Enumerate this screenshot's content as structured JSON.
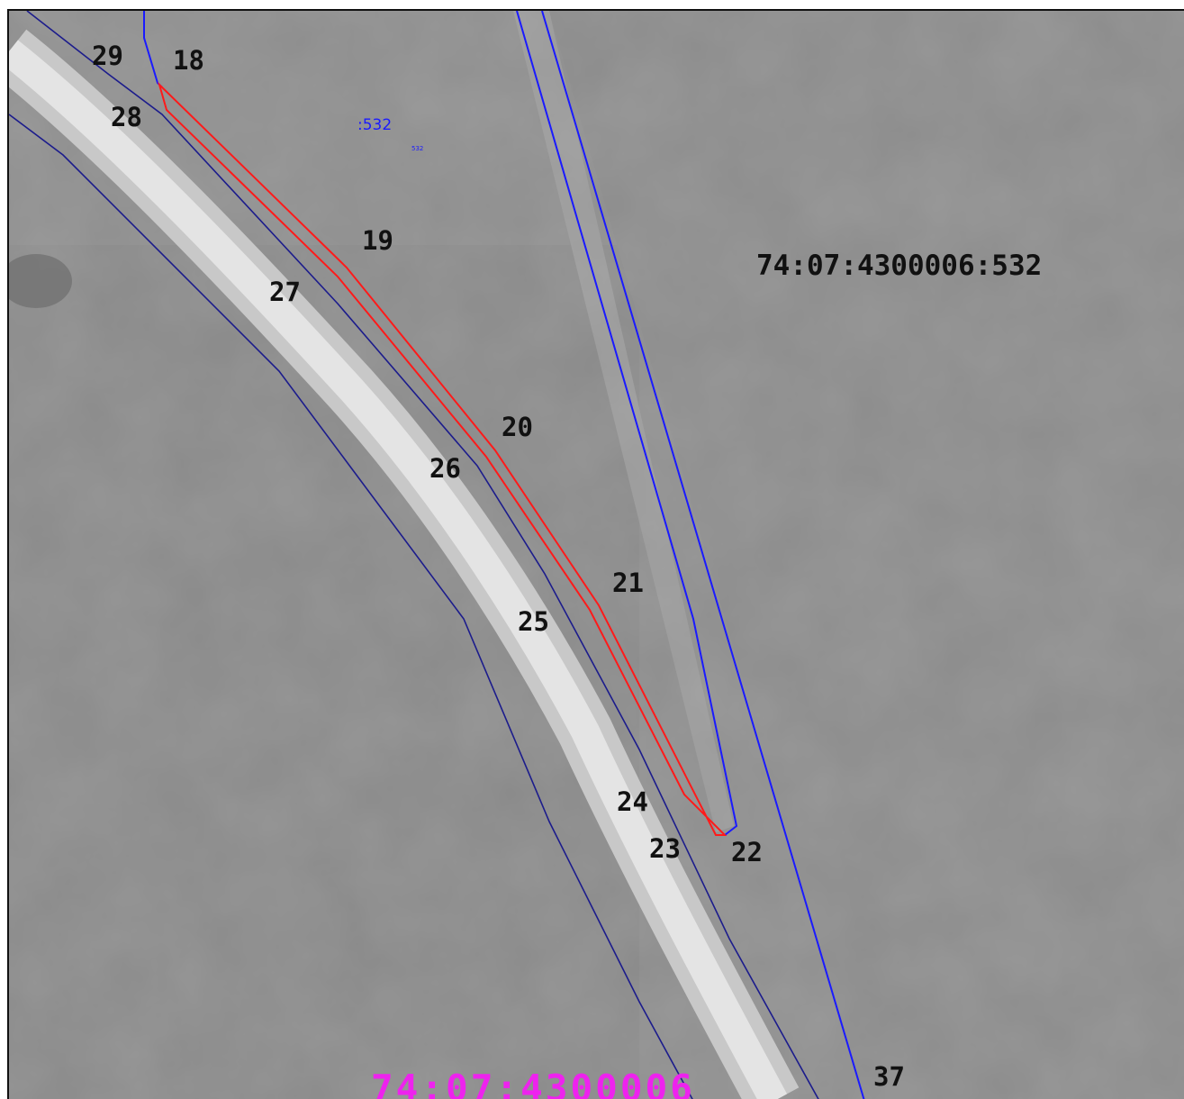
{
  "map": {
    "parcel_label": "74:07:4300006:532",
    "quarter_label": "74:07:4300006",
    "parcel_short_label": ":532",
    "parcel_tiny_label": "532",
    "points": {
      "p18": "18",
      "p19": "19",
      "p20": "20",
      "p21": "21",
      "p22": "22",
      "p23": "23",
      "p24": "24",
      "p25": "25",
      "p26": "26",
      "p27": "27",
      "p28": "28",
      "p29": "29",
      "p37": "37"
    },
    "colors": {
      "background": "#8f8f8f",
      "road": "#d9d9d9",
      "parcel_boundary": "#1a1aff",
      "road_boundary": "#1c1c8c",
      "target_plot": "#ff1a1a",
      "quarter_label": "#ee22ee"
    }
  }
}
